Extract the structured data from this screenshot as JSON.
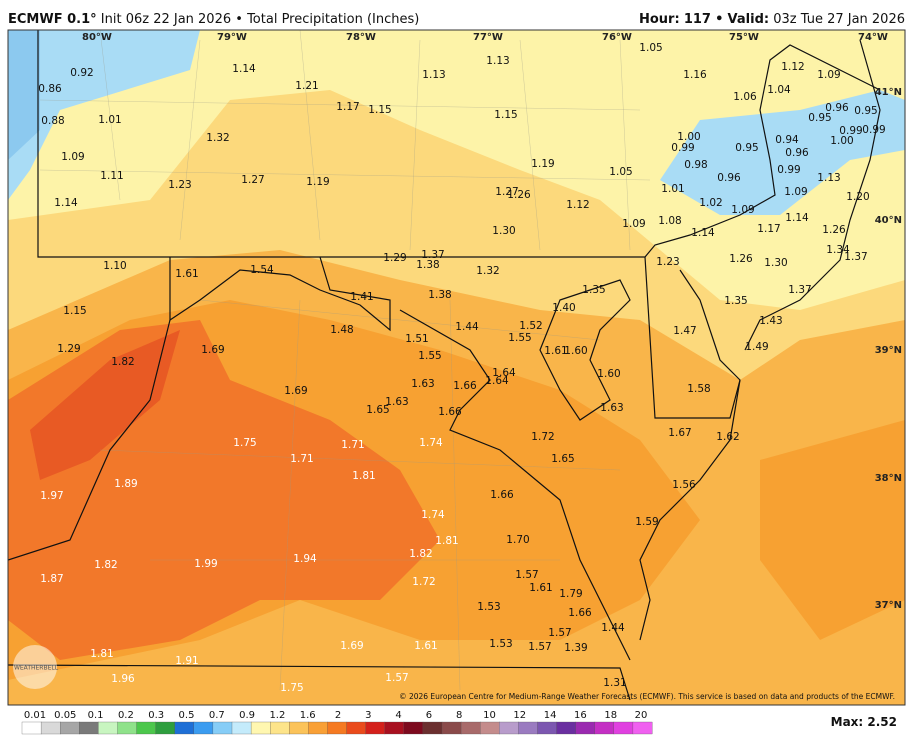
{
  "header": {
    "model": "ECMWF 0.1°",
    "init": "Init 06z 22 Jan 2026",
    "separator": "•",
    "product": "Total Precipitation (Inches)",
    "hour_label": "Hour:",
    "hour": "117",
    "valid_label": "Valid:",
    "valid": "03z Tue 27 Jan 2026"
  },
  "map": {
    "lon_labels": [
      "80°W",
      "79°W",
      "78°W",
      "77°W",
      "76°W",
      "75°W",
      "74°W"
    ],
    "lat_labels": [
      "41°N",
      "40°N",
      "39°N",
      "38°N",
      "37°N"
    ],
    "values": [
      "0.92",
      "0.86",
      "0.88",
      "1.01",
      "1.09",
      "1.11",
      "1.14",
      "1.14",
      "1.21",
      "1.17",
      "1.15",
      "1.13",
      "1.13",
      "1.15",
      "1.05",
      "1.16",
      "1.12",
      "1.09",
      "1.06",
      "1.04",
      "1.32",
      "1.23",
      "1.27",
      "1.19",
      "1.19",
      "1.05",
      "1.27",
      "1.26",
      "1.12",
      "1.09",
      "1.08",
      "1.30",
      "1.00",
      "0.99",
      "0.98",
      "0.95",
      "0.94",
      "0.96",
      "0.96",
      "0.95",
      "0.95",
      "0.99",
      "0.99",
      "1.00",
      "0.99",
      "0.96",
      "1.01",
      "1.02",
      "1.09",
      "1.09",
      "1.13",
      "1.20",
      "1.14",
      "1.17",
      "1.26",
      "1.14",
      "1.34",
      "1.37",
      "1.23",
      "1.26",
      "1.30",
      "1.10",
      "1.61",
      "1.54",
      "1.29",
      "1.37",
      "1.38",
      "1.32",
      "1.41",
      "1.38",
      "1.35",
      "1.35",
      "1.37",
      "1.15",
      "1.48",
      "1.44",
      "1.52",
      "1.55",
      "1.40",
      "1.47",
      "1.43",
      "1.29",
      "1.82",
      "1.69",
      "1.51",
      "1.55",
      "1.61",
      "1.60",
      "1.49",
      "1.63",
      "1.66",
      "1.64",
      "1.64",
      "1.60",
      "1.69",
      "1.63",
      "1.65",
      "1.66",
      "1.63",
      "1.58",
      "1.75",
      "1.71",
      "1.74",
      "1.72",
      "1.67",
      "1.62",
      "1.71",
      "1.65",
      "1.81",
      "1.97",
      "1.89",
      "1.66",
      "1.56",
      "1.74",
      "1.59",
      "1.70",
      "1.81",
      "1.82",
      "1.94",
      "1.82",
      "1.99",
      "1.87",
      "1.72",
      "1.57",
      "1.61",
      "1.79",
      "1.53",
      "1.66",
      "1.44",
      "1.57",
      "1.69",
      "1.61",
      "1.53",
      "1.57",
      "1.39",
      "1.81",
      "1.91",
      "1.57",
      "1.96",
      "1.31",
      "1.75"
    ],
    "credit": "© 2026 European Centre for Medium-Range Weather Forecasts (ECMWF). This service is based on data and products of the ECMWF.",
    "watermark": "WEATHERBELL"
  },
  "colorbar": {
    "ticks": [
      "0.01",
      "0.05",
      "0.1",
      "0.2",
      "0.3",
      "0.5",
      "0.7",
      "0.9",
      "1.2",
      "1.6",
      "2",
      "3",
      "4",
      "6",
      "8",
      "10",
      "12",
      "14",
      "16",
      "18",
      "20"
    ],
    "colors": [
      "#ffffff",
      "#d9d9d9",
      "#a6a6a6",
      "#7a7a7a",
      "#c8f5c0",
      "#8fe28a",
      "#4cc74c",
      "#2e9e3e",
      "#1e6fd6",
      "#3b9cf0",
      "#86cdf7",
      "#c4ebfb",
      "#fff7b0",
      "#fde48a",
      "#fbc35a",
      "#f9a036",
      "#f57a22",
      "#ea4b1c",
      "#d4201b",
      "#a81020",
      "#7d0a1e",
      "#6b2f2f",
      "#8a4a4a",
      "#a86a6a",
      "#c48c8c",
      "#b89ccb",
      "#9a7bc0",
      "#7c57b0",
      "#6a2fa0",
      "#9a2ab0",
      "#c42fc4",
      "#e040e0",
      "#f060f0"
    ],
    "max_label": "Max:",
    "max": "2.52"
  }
}
